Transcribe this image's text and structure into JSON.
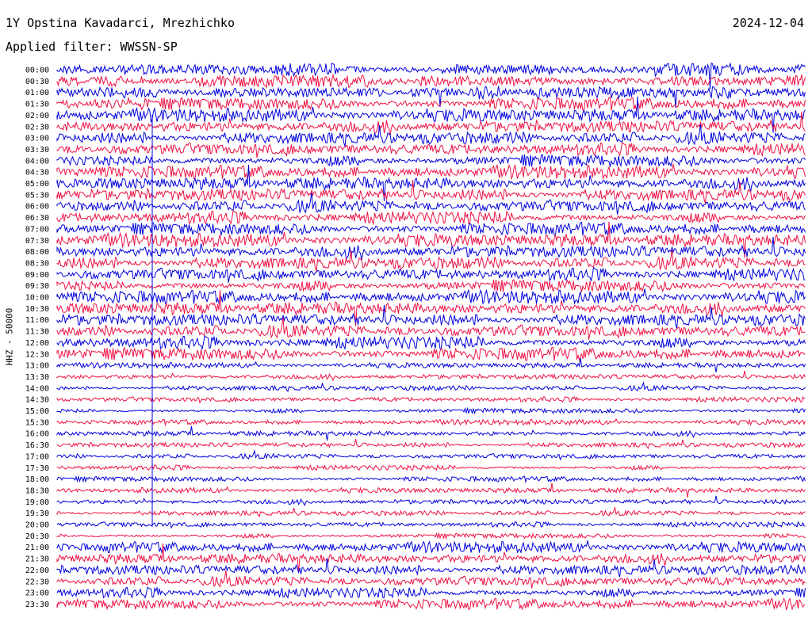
{
  "header": {
    "station": "1Y Opstina Kavadarci, Mrezhichko",
    "date": "2024-12-04",
    "filter": "Applied filter: WWSSN-SP"
  },
  "axis": {
    "channel_label": "HHZ - 50000"
  },
  "colors": {
    "trace_a": "#0000dd",
    "trace_b": "#ee1144",
    "background": "#ffffff"
  },
  "traces": [
    {
      "time": "00:00",
      "color": "blue"
    },
    {
      "time": "00:30",
      "color": "red"
    },
    {
      "time": "01:00",
      "color": "blue"
    },
    {
      "time": "01:30",
      "color": "red"
    },
    {
      "time": "02:00",
      "color": "blue"
    },
    {
      "time": "02:30",
      "color": "red"
    },
    {
      "time": "03:00",
      "color": "blue"
    },
    {
      "time": "03:30",
      "color": "red"
    },
    {
      "time": "04:00",
      "color": "blue"
    },
    {
      "time": "04:30",
      "color": "red"
    },
    {
      "time": "05:00",
      "color": "blue"
    },
    {
      "time": "05:30",
      "color": "red"
    },
    {
      "time": "06:00",
      "color": "blue"
    },
    {
      "time": "06:30",
      "color": "red"
    },
    {
      "time": "07:00",
      "color": "blue"
    },
    {
      "time": "07:30",
      "color": "red"
    },
    {
      "time": "08:00",
      "color": "blue"
    },
    {
      "time": "08:30",
      "color": "red"
    },
    {
      "time": "09:00",
      "color": "blue"
    },
    {
      "time": "09:30",
      "color": "red"
    },
    {
      "time": "10:00",
      "color": "blue"
    },
    {
      "time": "10:30",
      "color": "red"
    },
    {
      "time": "11:00",
      "color": "blue"
    },
    {
      "time": "11:30",
      "color": "red"
    },
    {
      "time": "12:00",
      "color": "blue"
    },
    {
      "time": "12:30",
      "color": "red"
    },
    {
      "time": "13:00",
      "color": "blue"
    },
    {
      "time": "13:30",
      "color": "red"
    },
    {
      "time": "14:00",
      "color": "blue"
    },
    {
      "time": "14:30",
      "color": "red"
    },
    {
      "time": "15:00",
      "color": "blue"
    },
    {
      "time": "15:30",
      "color": "red"
    },
    {
      "time": "16:00",
      "color": "blue"
    },
    {
      "time": "16:30",
      "color": "red"
    },
    {
      "time": "17:00",
      "color": "blue"
    },
    {
      "time": "17:30",
      "color": "red"
    },
    {
      "time": "18:00",
      "color": "blue"
    },
    {
      "time": "18:30",
      "color": "red"
    },
    {
      "time": "19:00",
      "color": "blue"
    },
    {
      "time": "19:30",
      "color": "red"
    },
    {
      "time": "20:00",
      "color": "blue"
    },
    {
      "time": "20:30",
      "color": "red"
    },
    {
      "time": "21:00",
      "color": "blue"
    },
    {
      "time": "21:30",
      "color": "red"
    },
    {
      "time": "22:00",
      "color": "blue"
    },
    {
      "time": "22:30",
      "color": "red"
    },
    {
      "time": "23:00",
      "color": "blue"
    },
    {
      "time": "23:30",
      "color": "red"
    }
  ]
}
